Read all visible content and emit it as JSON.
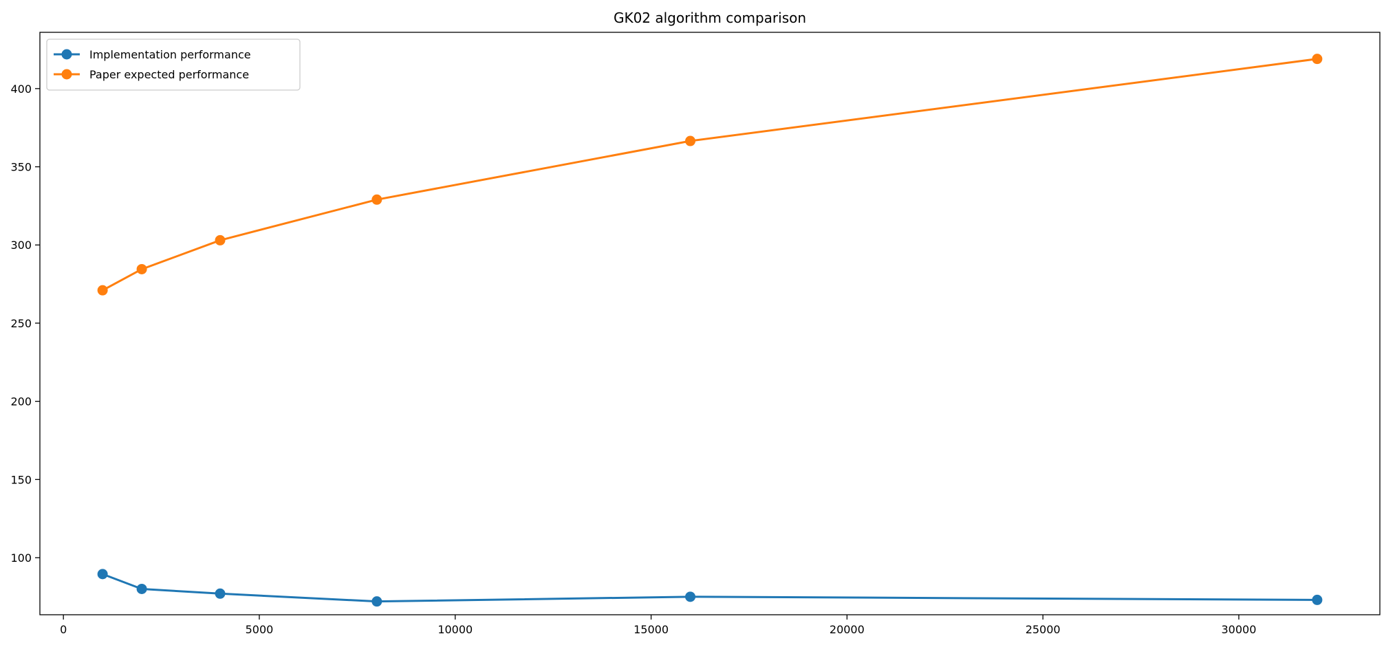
{
  "chart_data": {
    "type": "line",
    "title": "GK02 algorithm comparison",
    "xlabel": "",
    "ylabel": "",
    "x": [
      1000,
      2000,
      4000,
      8000,
      16000,
      32000
    ],
    "series": [
      {
        "name": "Implementation performance",
        "color": "#1f77b4",
        "values": [
          89.5,
          80,
          77,
          72,
          75,
          73
        ]
      },
      {
        "name": "Paper expected performance",
        "color": "#ff7f0e",
        "values": [
          271,
          284.5,
          303,
          329,
          366.5,
          419
        ]
      }
    ],
    "xlim": [
      -600,
      33600
    ],
    "ylim": [
      63.5,
      436
    ],
    "xticks": [
      0,
      5000,
      10000,
      15000,
      20000,
      25000,
      30000
    ],
    "xtick_labels": [
      "0",
      "5000",
      "10000",
      "15000",
      "20000",
      "25000",
      "30000"
    ],
    "yticks": [
      100,
      150,
      200,
      250,
      300,
      350,
      400
    ],
    "ytick_labels": [
      "100",
      "150",
      "200",
      "250",
      "300",
      "350",
      "400"
    ],
    "grid": false,
    "legend_position": "top-left",
    "markers": true
  }
}
